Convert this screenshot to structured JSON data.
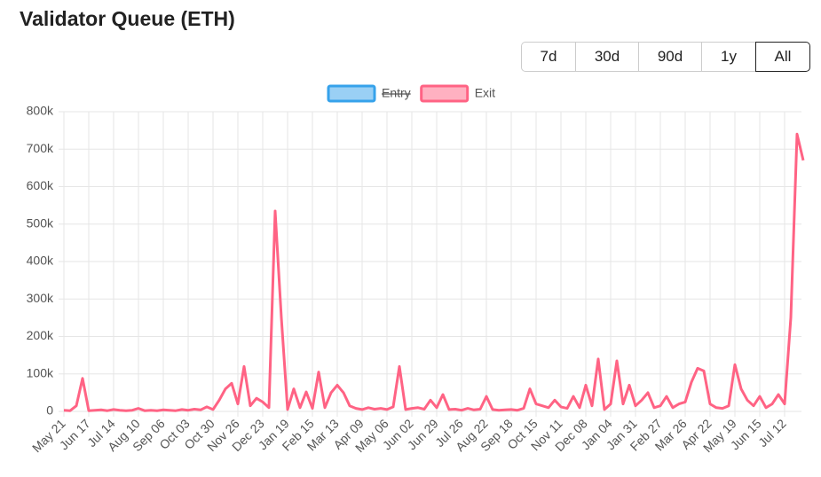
{
  "page_title": "Validator Queue (ETH)",
  "range_buttons": {
    "options": [
      "7d",
      "30d",
      "90d",
      "1y",
      "All"
    ],
    "selected": "All"
  },
  "chart_data": {
    "type": "line",
    "categories": [
      "May 21",
      null,
      null,
      null,
      "Jun 17",
      null,
      null,
      null,
      "Jul 14",
      null,
      null,
      null,
      "Aug 10",
      null,
      null,
      null,
      "Sep 06",
      null,
      null,
      null,
      "Oct 03",
      null,
      null,
      null,
      "Oct 30",
      null,
      null,
      null,
      "Nov 26",
      null,
      null,
      null,
      "Dec 23",
      null,
      null,
      null,
      "Jan 19",
      null,
      null,
      null,
      "Feb 15",
      null,
      null,
      null,
      "Mar 13",
      null,
      null,
      null,
      "Apr 09",
      null,
      null,
      null,
      "May 06",
      null,
      null,
      null,
      "Jun 02",
      null,
      null,
      null,
      "Jun 29",
      null,
      null,
      null,
      "Jul 26",
      null,
      null,
      null,
      "Aug 22",
      null,
      null,
      null,
      "Sep 18",
      null,
      null,
      null,
      "Oct 15",
      null,
      null,
      null,
      "Nov 11",
      null,
      null,
      null,
      "Dec 08",
      null,
      null,
      null,
      "Jan 04",
      null,
      null,
      null,
      "Jan 31",
      null,
      null,
      null,
      "Feb 27",
      null,
      null,
      null,
      "Mar 26",
      null,
      null,
      null,
      "Apr 22",
      null,
      null,
      null,
      "May 19",
      null,
      null,
      null,
      "Jun 15",
      null,
      null,
      null,
      "Jul 12",
      null,
      null,
      null
    ],
    "series": [
      {
        "name": "Entry",
        "color": "#36a2eb",
        "fill": "#9ad0f5",
        "hidden": true
      },
      {
        "name": "Exit",
        "color": "#ff6384",
        "fill": "#ffb1c1",
        "hidden": false,
        "values": [
          3000,
          2000,
          15000,
          88000,
          2000,
          3000,
          4000,
          2000,
          5000,
          3000,
          2000,
          3000,
          8000,
          2000,
          3000,
          2000,
          4000,
          3000,
          2000,
          5000,
          3000,
          6000,
          4000,
          12000,
          5000,
          30000,
          60000,
          75000,
          20000,
          120000,
          15000,
          35000,
          25000,
          10000,
          535000,
          250000,
          5000,
          60000,
          10000,
          52000,
          8000,
          105000,
          10000,
          50000,
          70000,
          50000,
          15000,
          8000,
          5000,
          10000,
          6000,
          8000,
          5000,
          12000,
          120000,
          5000,
          8000,
          10000,
          6000,
          30000,
          10000,
          45000,
          5000,
          6000,
          3000,
          8000,
          4000,
          6000,
          40000,
          5000,
          3000,
          4000,
          5000,
          3000,
          8000,
          60000,
          20000,
          15000,
          10000,
          30000,
          12000,
          8000,
          40000,
          10000,
          70000,
          15000,
          140000,
          5000,
          20000,
          135000,
          20000,
          70000,
          15000,
          30000,
          50000,
          10000,
          15000,
          40000,
          10000,
          20000,
          25000,
          78000,
          115000,
          108000,
          20000,
          10000,
          8000,
          15000,
          125000,
          60000,
          30000,
          15000,
          40000,
          10000,
          20000,
          45000,
          20000,
          250000,
          740000,
          670000
        ]
      }
    ],
    "ylim": [
      0,
      800000
    ],
    "yticks": [
      0,
      {
        "value": 100000,
        "label": "100k"
      },
      {
        "value": 200000,
        "label": "200k"
      },
      {
        "value": 300000,
        "label": "300k"
      },
      {
        "value": 400000,
        "label": "400k"
      },
      {
        "value": 500000,
        "label": "500k"
      },
      {
        "value": 600000,
        "label": "600k"
      },
      {
        "value": 700000,
        "label": "700k"
      },
      {
        "value": 800000,
        "label": "800k"
      }
    ],
    "grid": true
  }
}
